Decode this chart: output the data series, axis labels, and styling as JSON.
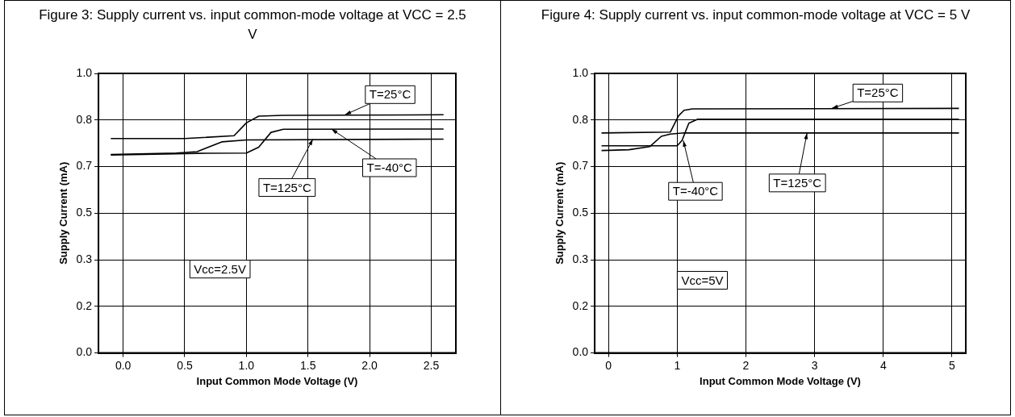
{
  "chart_data": [
    {
      "type": "line",
      "title": "Figure 3: Supply current vs. input common-mode voltage at VCC = 2.5 V",
      "xlabel": "Input Common Mode Voltage (V)",
      "ylabel": "Supply Current (mA)",
      "xlim": [
        -0.2,
        2.7
      ],
      "xticks": [
        {
          "value": 0,
          "label": "0.0"
        },
        0.5,
        {
          "value": 1,
          "label": "1.0"
        },
        1.5,
        {
          "value": 2,
          "label": "2.0"
        },
        2.5
      ],
      "ylim": [
        0,
        1
      ],
      "yticks": [
        {
          "value": 0,
          "label": "0.0"
        },
        {
          "value": 0.1667,
          "label": "0.2"
        },
        {
          "value": 0.3333,
          "label": "0.3"
        },
        {
          "value": 0.5,
          "label": "0.5"
        },
        {
          "value": 0.6667,
          "label": "0.7"
        },
        {
          "value": 0.8333,
          "label": "0.8"
        },
        {
          "value": 1,
          "label": "1.0"
        }
      ],
      "grid": true,
      "legend": false,
      "marker": "none",
      "line_style": "solid",
      "series": [
        {
          "color": "#000000",
          "x": [
            -0.1,
            0.5,
            0.9,
            1.0,
            1.1,
            1.3,
            2.6
          ],
          "values": [
            0.767,
            0.767,
            0.777,
            0.823,
            0.847,
            0.85,
            0.852
          ]
        },
        {
          "color": "#000000",
          "x": [
            -0.1,
            0.43,
            0.6,
            0.8,
            1.0,
            2.6
          ],
          "values": [
            0.71,
            0.715,
            0.72,
            0.755,
            0.762,
            0.765
          ]
        },
        {
          "color": "#000000",
          "x": [
            -0.1,
            0.6,
            1.0,
            1.1,
            1.2,
            1.3,
            2.6
          ],
          "values": [
            0.708,
            0.714,
            0.715,
            0.736,
            0.789,
            0.8,
            0.801
          ]
        }
      ],
      "annotations": [
        {
          "text": "T=25°C",
          "x": 1.8,
          "y": 0.852
        },
        {
          "text": "T=-40°C",
          "x": 1.69,
          "y": 0.801
        },
        {
          "text": "T=125°C",
          "x": 1.54,
          "y": 0.765
        },
        "Vcc=2.5V"
      ]
    },
    {
      "type": "line",
      "title": "Figure 4: Supply current vs. input common-mode voltage at VCC = 5 V",
      "xlabel": "Input Common Mode Voltage (V)",
      "ylabel": "Supply Current (mA)",
      "xlim": [
        -0.2,
        5.2
      ],
      "xticks": [
        0,
        1,
        2,
        3,
        4,
        5
      ],
      "ylim": [
        0,
        1
      ],
      "yticks": [
        {
          "value": 0,
          "label": "0.0"
        },
        {
          "value": 0.1667,
          "label": "0.2"
        },
        {
          "value": 0.3333,
          "label": "0.3"
        },
        {
          "value": 0.5,
          "label": "0.5"
        },
        {
          "value": 0.6667,
          "label": "0.7"
        },
        {
          "value": 0.8333,
          "label": "0.8"
        },
        {
          "value": 1,
          "label": "1.0"
        }
      ],
      "grid": true,
      "legend": false,
      "marker": "none",
      "line_style": "solid",
      "series": [
        {
          "color": "#000000",
          "x": [
            -0.1,
            0.9,
            1.02,
            1.1,
            1.22,
            5.1
          ],
          "values": [
            0.787,
            0.79,
            0.848,
            0.868,
            0.873,
            0.875
          ]
        },
        {
          "color": "#000000",
          "x": [
            -0.1,
            0.3,
            0.6,
            0.77,
            0.9,
            1.1,
            5.1
          ],
          "values": [
            0.724,
            0.727,
            0.738,
            0.775,
            0.783,
            0.787,
            0.787
          ]
        },
        {
          "color": "#000000",
          "x": [
            -0.1,
            1.0,
            1.07,
            1.17,
            1.3,
            5.1
          ],
          "values": [
            0.741,
            0.741,
            0.76,
            0.822,
            0.836,
            0.836
          ]
        }
      ],
      "annotations": [
        {
          "text": "T=25°C",
          "x": 3.25,
          "y": 0.875
        },
        {
          "text": "T=125°C",
          "x": 2.89,
          "y": 0.787
        },
        {
          "text": "T=-40°C",
          "x": 1.09,
          "y": 0.76
        },
        "Vcc=5V"
      ]
    }
  ]
}
